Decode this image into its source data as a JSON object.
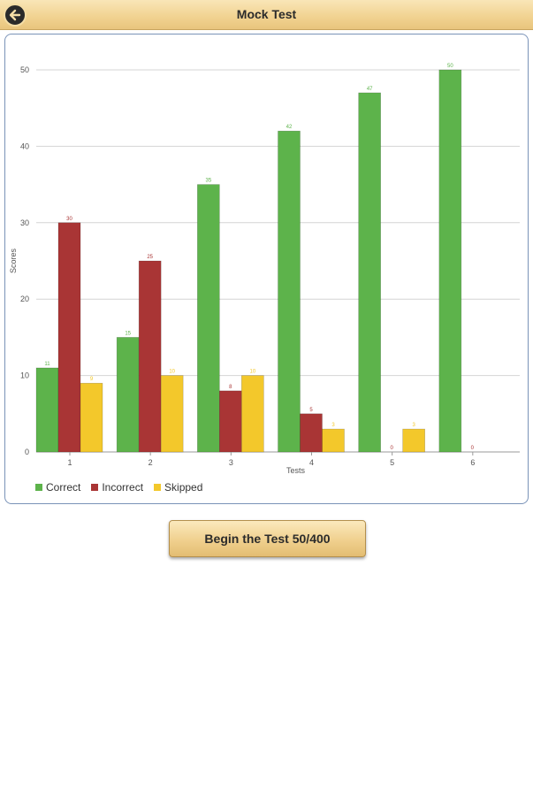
{
  "header": {
    "title": "Mock Test",
    "back_icon": "back-arrow-icon"
  },
  "chart_data": {
    "type": "bar",
    "xlabel": "Tests",
    "ylabel": "Scores",
    "categories": [
      "1",
      "2",
      "3",
      "4",
      "5",
      "6"
    ],
    "ylim": [
      0,
      50
    ],
    "yticks": [
      0,
      10,
      20,
      30,
      40,
      50
    ],
    "grid": true,
    "legend_position": "bottom-left",
    "series": [
      {
        "name": "Correct",
        "color": "#5db34b",
        "values": [
          11,
          15,
          35,
          42,
          47,
          50
        ]
      },
      {
        "name": "Incorrect",
        "color": "#a93535",
        "values": [
          30,
          25,
          8,
          5,
          0,
          0
        ]
      },
      {
        "name": "Skipped",
        "color": "#f3c82b",
        "values": [
          9,
          10,
          10,
          3,
          3,
          null
        ]
      }
    ]
  },
  "action": {
    "begin_label": "Begin the Test 50/400"
  }
}
